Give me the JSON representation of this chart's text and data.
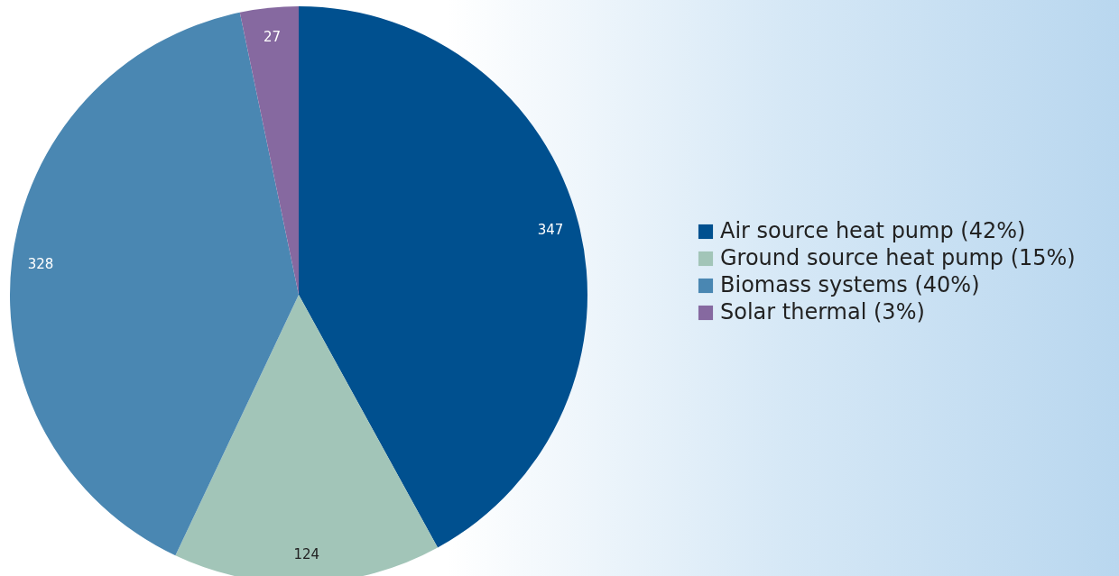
{
  "chart_data": {
    "type": "pie",
    "categories": [
      "Air source heat pump (42%)",
      "Ground source heat pump (15%)",
      "Biomass systems (40%)",
      "Solar thermal (3%)"
    ],
    "values": [
      347,
      124,
      328,
      27
    ],
    "colors": [
      "#00508f",
      "#a2c5b8",
      "#4a87b2",
      "#8669a0"
    ],
    "data_labels": true,
    "legend": "right"
  }
}
